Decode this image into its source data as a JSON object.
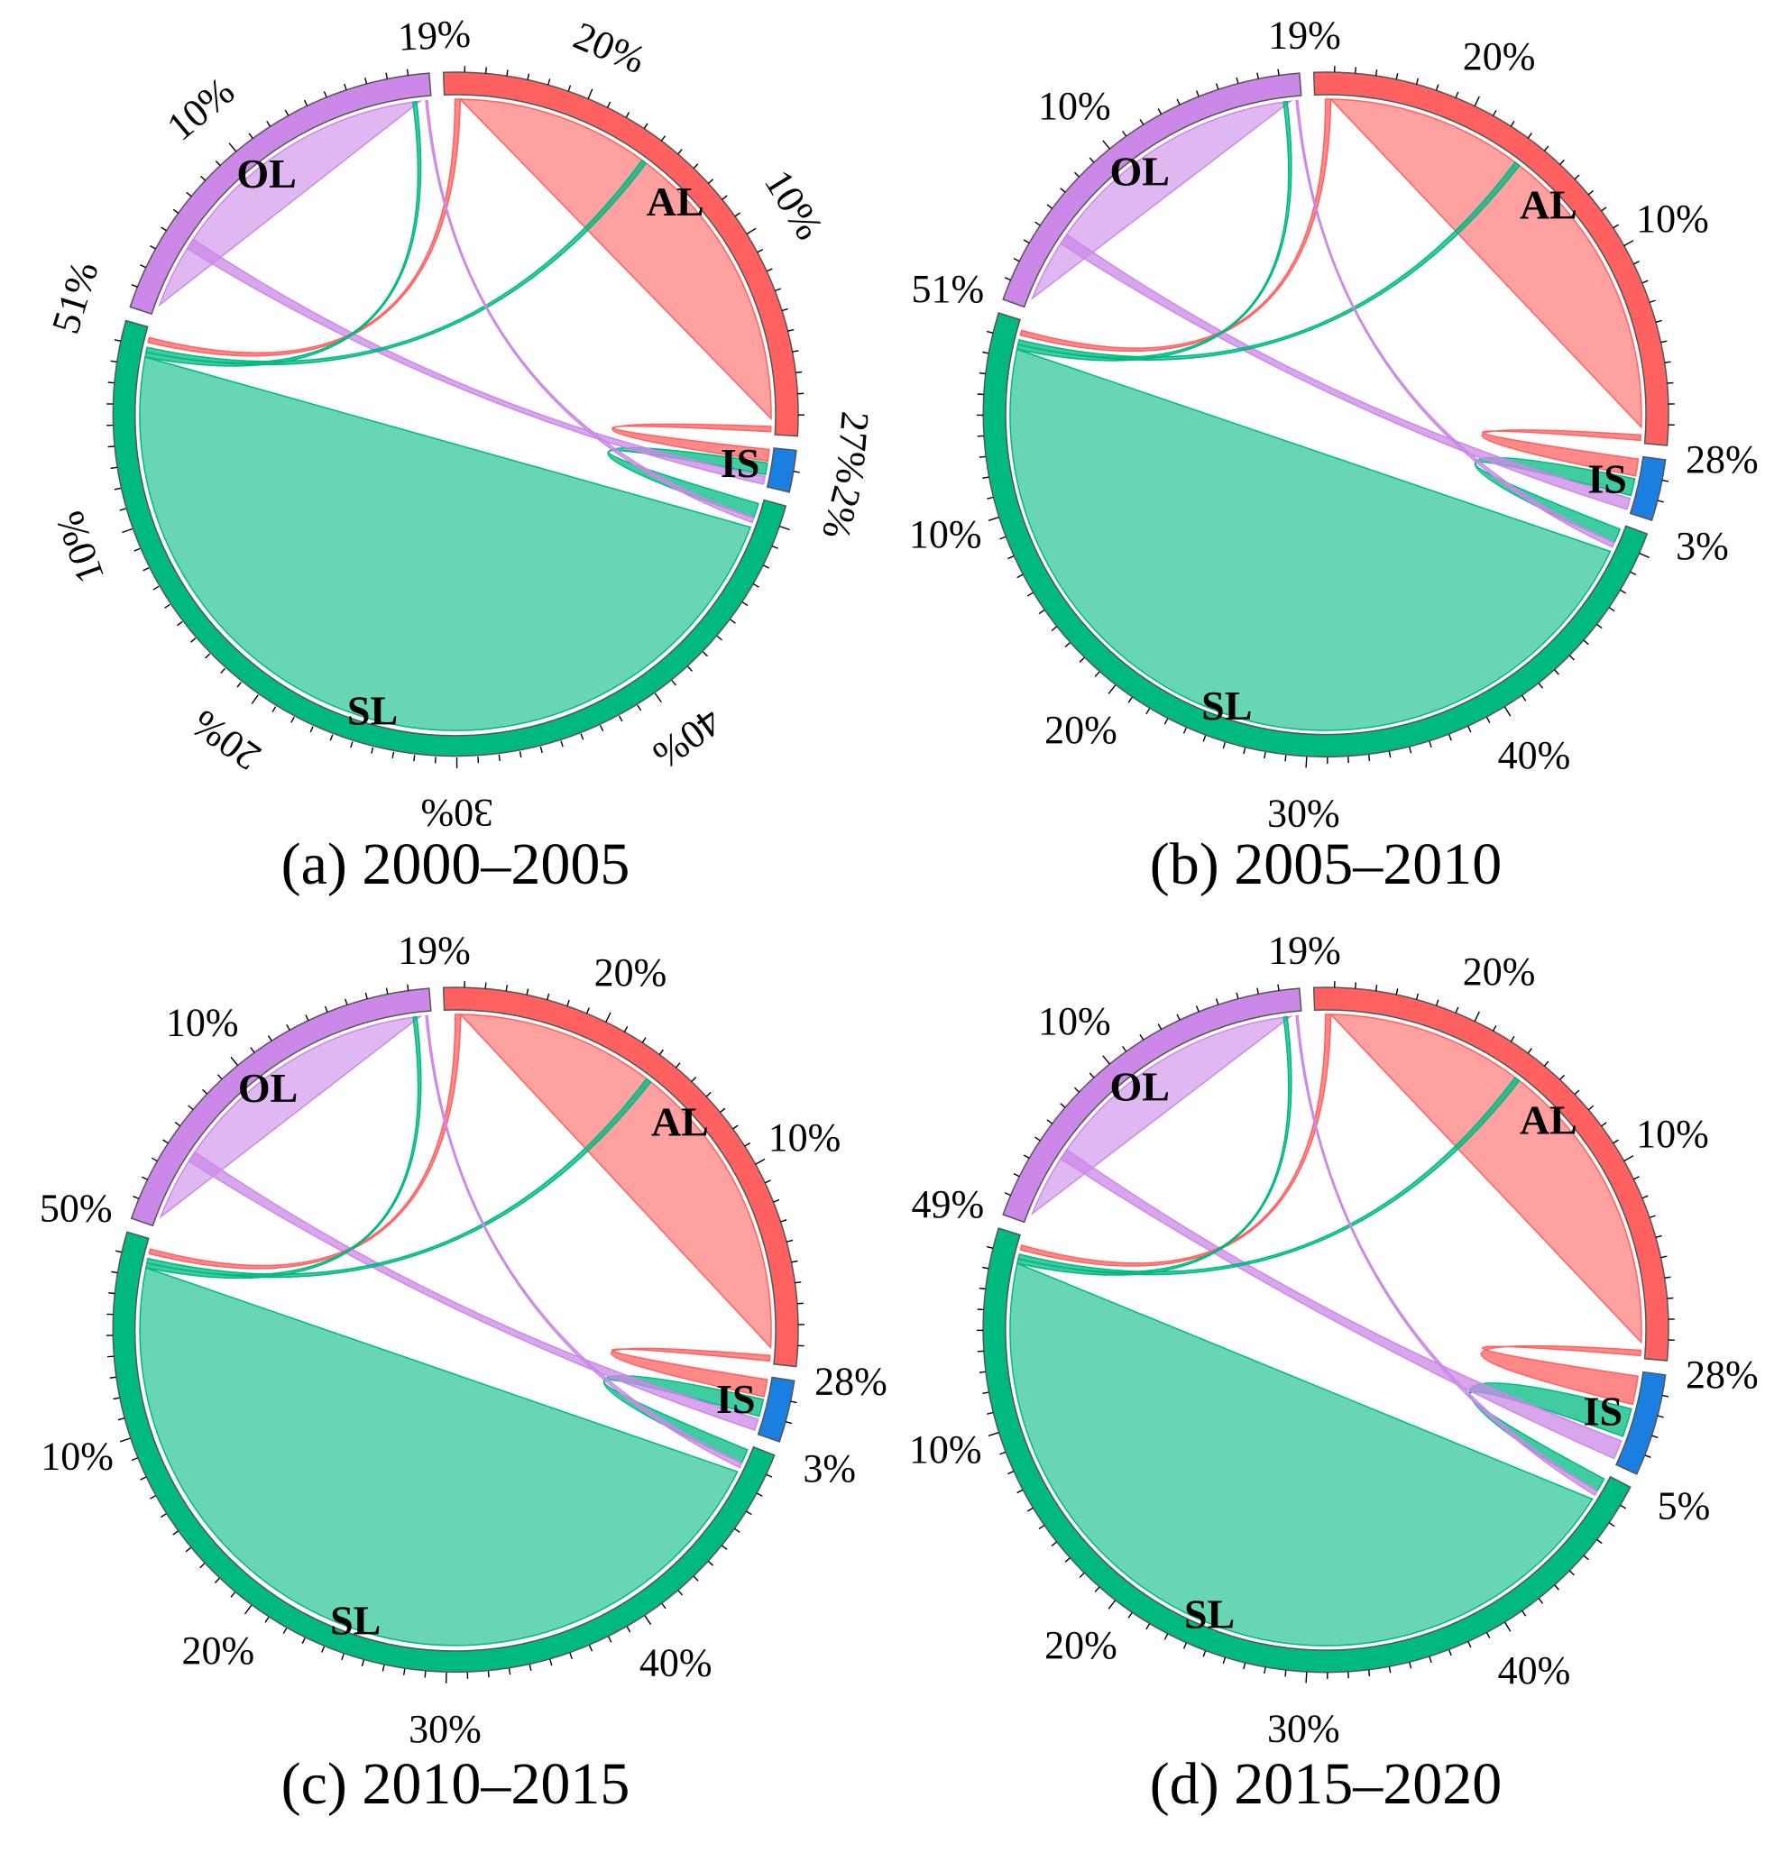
{
  "chart_data": [
    {
      "type": "chord",
      "caption": "(a) 2000–2005",
      "categories": [
        "AL",
        "IS",
        "SL",
        "OL"
      ],
      "colors": {
        "AL": "#ff6161",
        "IS": "#1a7fe0",
        "SL": "#00b981",
        "OL": "#cc88e8"
      },
      "shares_percent": {
        "AL": 27,
        "IS": 2,
        "SL": 51,
        "OL": 19
      },
      "cumulative_boundaries": [
        "19%",
        "27%",
        "2%",
        "51%"
      ],
      "tick_labels": {
        "AL": [
          "10%",
          "20%"
        ],
        "SL": [
          "10%",
          "20%",
          "30%",
          "40%"
        ],
        "OL": [
          "10%"
        ]
      },
      "label_style": "rotated",
      "flows": [
        {
          "from": "AL",
          "to": "AL",
          "type": "self"
        },
        {
          "from": "SL",
          "to": "SL",
          "type": "self"
        },
        {
          "from": "OL",
          "to": "OL",
          "type": "self"
        },
        {
          "from": "AL",
          "to": "IS"
        },
        {
          "from": "SL",
          "to": "IS"
        },
        {
          "from": "OL",
          "to": "IS"
        },
        {
          "from": "AL",
          "to": "SL"
        },
        {
          "from": "SL",
          "to": "AL"
        },
        {
          "from": "OL",
          "to": "SL"
        },
        {
          "from": "SL",
          "to": "OL"
        }
      ]
    },
    {
      "type": "chord",
      "caption": "(b) 2005–2010",
      "categories": [
        "AL",
        "IS",
        "SL",
        "OL"
      ],
      "colors": {
        "AL": "#ff6161",
        "IS": "#1a7fe0",
        "SL": "#00b981",
        "OL": "#cc88e8"
      },
      "shares_percent": {
        "AL": 28,
        "IS": 3,
        "SL": 51,
        "OL": 19
      },
      "cumulative_boundaries": [
        "19%",
        "28%",
        "3%",
        "51%"
      ],
      "tick_labels": {
        "AL": [
          "10%",
          "20%"
        ],
        "SL": [
          "10%",
          "20%",
          "30%",
          "40%"
        ],
        "OL": [
          "10%"
        ]
      },
      "label_style": "horizontal",
      "flows": [
        {
          "from": "AL",
          "to": "AL",
          "type": "self"
        },
        {
          "from": "SL",
          "to": "SL",
          "type": "self"
        },
        {
          "from": "OL",
          "to": "OL",
          "type": "self"
        },
        {
          "from": "AL",
          "to": "IS"
        },
        {
          "from": "SL",
          "to": "IS"
        },
        {
          "from": "OL",
          "to": "IS"
        },
        {
          "from": "AL",
          "to": "SL"
        },
        {
          "from": "SL",
          "to": "AL"
        },
        {
          "from": "OL",
          "to": "SL"
        },
        {
          "from": "SL",
          "to": "OL"
        }
      ]
    },
    {
      "type": "chord",
      "caption": "(c) 2010–2015",
      "categories": [
        "AL",
        "IS",
        "SL",
        "OL"
      ],
      "colors": {
        "AL": "#ff6161",
        "IS": "#1a7fe0",
        "SL": "#00b981",
        "OL": "#cc88e8"
      },
      "shares_percent": {
        "AL": 28,
        "IS": 3,
        "SL": 50,
        "OL": 19
      },
      "cumulative_boundaries": [
        "19%",
        "28%",
        "3%",
        "50%"
      ],
      "tick_labels": {
        "AL": [
          "10%",
          "20%"
        ],
        "SL": [
          "10%",
          "20%",
          "30%",
          "40%"
        ],
        "OL": [
          "10%"
        ]
      },
      "label_style": "horizontal",
      "flows": [
        {
          "from": "AL",
          "to": "AL",
          "type": "self"
        },
        {
          "from": "SL",
          "to": "SL",
          "type": "self"
        },
        {
          "from": "OL",
          "to": "OL",
          "type": "self"
        },
        {
          "from": "AL",
          "to": "IS"
        },
        {
          "from": "SL",
          "to": "IS"
        },
        {
          "from": "OL",
          "to": "IS"
        },
        {
          "from": "AL",
          "to": "SL"
        },
        {
          "from": "SL",
          "to": "AL"
        },
        {
          "from": "OL",
          "to": "SL"
        },
        {
          "from": "SL",
          "to": "OL"
        }
      ]
    },
    {
      "type": "chord",
      "caption": "(d) 2015–2020",
      "categories": [
        "AL",
        "IS",
        "SL",
        "OL"
      ],
      "colors": {
        "AL": "#ff6161",
        "IS": "#1a7fe0",
        "SL": "#00b981",
        "OL": "#cc88e8"
      },
      "shares_percent": {
        "AL": 28,
        "IS": 5,
        "SL": 49,
        "OL": 19
      },
      "cumulative_boundaries": [
        "19%",
        "28%",
        "5%",
        "49%"
      ],
      "tick_labels": {
        "AL": [
          "10%",
          "20%"
        ],
        "SL": [
          "10%",
          "20%",
          "30%",
          "40%"
        ],
        "OL": [
          "10%"
        ]
      },
      "label_style": "horizontal",
      "flows": [
        {
          "from": "AL",
          "to": "AL",
          "type": "self"
        },
        {
          "from": "SL",
          "to": "SL",
          "type": "self"
        },
        {
          "from": "OL",
          "to": "OL",
          "type": "self"
        },
        {
          "from": "AL",
          "to": "IS"
        },
        {
          "from": "SL",
          "to": "IS"
        },
        {
          "from": "OL",
          "to": "IS"
        },
        {
          "from": "AL",
          "to": "SL"
        },
        {
          "from": "SL",
          "to": "AL"
        },
        {
          "from": "OL",
          "to": "SL"
        },
        {
          "from": "SL",
          "to": "OL"
        }
      ]
    }
  ]
}
